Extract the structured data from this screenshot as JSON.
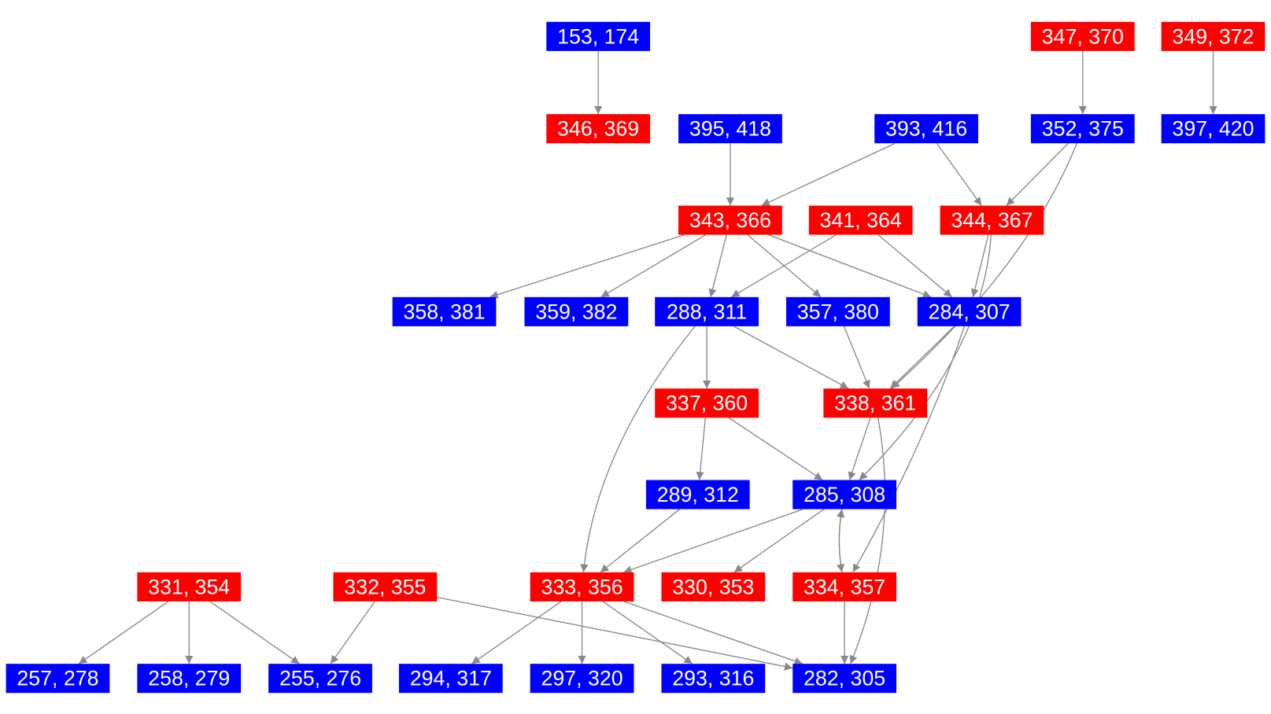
{
  "nodes": [
    {
      "label": "153, 174",
      "color": "blue"
    },
    {
      "label": "347, 370",
      "color": "red"
    },
    {
      "label": "349, 372",
      "color": "red"
    },
    {
      "label": "346, 369",
      "color": "red"
    },
    {
      "label": "395, 418",
      "color": "blue"
    },
    {
      "label": "393, 416",
      "color": "blue"
    },
    {
      "label": "352, 375",
      "color": "blue"
    },
    {
      "label": "397, 420",
      "color": "blue"
    },
    {
      "label": "343, 366",
      "color": "red"
    },
    {
      "label": "341, 364",
      "color": "red"
    },
    {
      "label": "344, 367",
      "color": "red"
    },
    {
      "label": "358, 381",
      "color": "blue"
    },
    {
      "label": "359, 382",
      "color": "blue"
    },
    {
      "label": "288, 311",
      "color": "blue"
    },
    {
      "label": "357, 380",
      "color": "blue"
    },
    {
      "label": "284, 307",
      "color": "blue"
    },
    {
      "label": "337, 360",
      "color": "red"
    },
    {
      "label": "338, 361",
      "color": "red"
    },
    {
      "label": "289, 312",
      "color": "blue"
    },
    {
      "label": "285, 308",
      "color": "blue"
    },
    {
      "label": "331, 354",
      "color": "red"
    },
    {
      "label": "332, 355",
      "color": "red"
    },
    {
      "label": "333, 356",
      "color": "red"
    },
    {
      "label": "330, 353",
      "color": "red"
    },
    {
      "label": "334, 357",
      "color": "red"
    },
    {
      "label": "257, 278",
      "color": "blue"
    },
    {
      "label": "258, 279",
      "color": "blue"
    },
    {
      "label": "255, 276",
      "color": "blue"
    },
    {
      "label": "294, 317",
      "color": "blue"
    },
    {
      "label": "297, 320",
      "color": "blue"
    },
    {
      "label": "293, 316",
      "color": "blue"
    },
    {
      "label": "282, 305",
      "color": "blue"
    }
  ]
}
